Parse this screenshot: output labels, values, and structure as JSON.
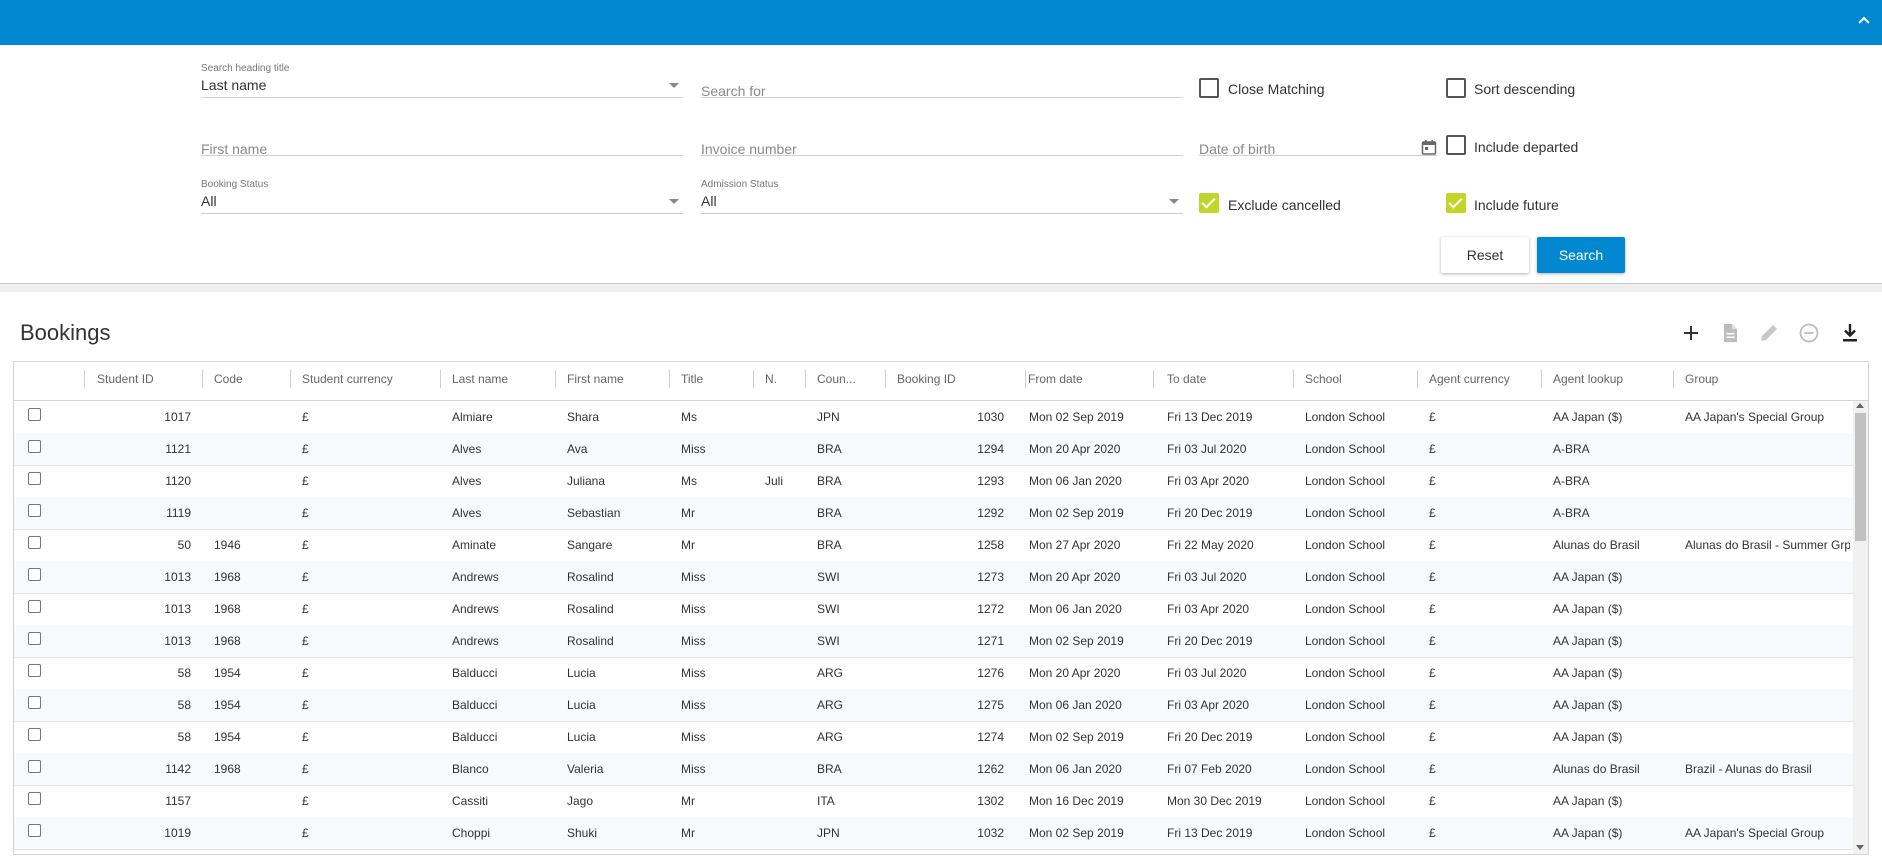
{
  "search": {
    "heading_label": "Search heading title",
    "heading_value": "Last name",
    "search_for_placeholder": "Search for",
    "first_name_placeholder": "First name",
    "invoice_placeholder": "Invoice number",
    "dob_placeholder": "Date of birth",
    "booking_status_label": "Booking Status",
    "booking_status_value": "All",
    "admission_status_label": "Admission Status",
    "admission_status_value": "All",
    "close_matching": {
      "label": "Close Matching",
      "checked": false
    },
    "sort_descending": {
      "label": "Sort descending",
      "checked": false
    },
    "include_departed": {
      "label": "Include departed",
      "checked": false
    },
    "exclude_cancelled": {
      "label": "Exclude cancelled",
      "checked": true
    },
    "include_future": {
      "label": "Include future",
      "checked": true
    },
    "reset_label": "Reset",
    "search_label": "Search"
  },
  "bookings": {
    "title": "Bookings",
    "toolbar_icons": [
      "add-icon",
      "document-icon",
      "edit-icon",
      "remove-icon",
      "download-icon"
    ],
    "columns": [
      "Student ID",
      "Code",
      "Student currency",
      "Last name",
      "First name",
      "Title",
      "N.",
      "Coun...",
      "Booking ID",
      "From date",
      "To date",
      "School",
      "Agent currency",
      "Agent lookup",
      "Group"
    ],
    "rows": [
      [
        "1017",
        "",
        "£",
        "Almiare",
        "Shara",
        "Ms",
        "",
        "JPN",
        "1030",
        "Mon 02 Sep 2019",
        "Fri 13 Dec 2019",
        "London School",
        "£",
        "AA Japan ($)",
        "AA Japan's Special Group"
      ],
      [
        "1121",
        "",
        "£",
        "Alves",
        "Ava",
        "Miss",
        "",
        "BRA",
        "1294",
        "Mon 20 Apr 2020",
        "Fri 03 Jul 2020",
        "London School",
        "£",
        "A-BRA",
        ""
      ],
      [
        "1120",
        "",
        "£",
        "Alves",
        "Juliana",
        "Ms",
        "Juli",
        "BRA",
        "1293",
        "Mon 06 Jan 2020",
        "Fri 03 Apr 2020",
        "London School",
        "£",
        "A-BRA",
        ""
      ],
      [
        "1119",
        "",
        "£",
        "Alves",
        "Sebastian",
        "Mr",
        "",
        "BRA",
        "1292",
        "Mon 02 Sep 2019",
        "Fri 20 Dec 2019",
        "London School",
        "£",
        "A-BRA",
        ""
      ],
      [
        "50",
        "1946",
        "£",
        "Aminate",
        "Sangare",
        "Mr",
        "",
        "BRA",
        "1258",
        "Mon 27 Apr 2020",
        "Fri 22 May 2020",
        "London School",
        "£",
        "Alunas do Brasil",
        "Alunas do Brasil - Summer Grp"
      ],
      [
        "1013",
        "1968",
        "£",
        "Andrews",
        "Rosalind",
        "Miss",
        "",
        "SWI",
        "1273",
        "Mon 20 Apr 2020",
        "Fri 03 Jul 2020",
        "London School",
        "£",
        "AA Japan ($)",
        ""
      ],
      [
        "1013",
        "1968",
        "£",
        "Andrews",
        "Rosalind",
        "Miss",
        "",
        "SWI",
        "1272",
        "Mon 06 Jan 2020",
        "Fri 03 Apr 2020",
        "London School",
        "£",
        "AA Japan ($)",
        ""
      ],
      [
        "1013",
        "1968",
        "£",
        "Andrews",
        "Rosalind",
        "Miss",
        "",
        "SWI",
        "1271",
        "Mon 02 Sep 2019",
        "Fri 20 Dec 2019",
        "London School",
        "£",
        "AA Japan ($)",
        ""
      ],
      [
        "58",
        "1954",
        "£",
        "Balducci",
        "Lucia",
        "Miss",
        "",
        "ARG",
        "1276",
        "Mon 20 Apr 2020",
        "Fri 03 Jul 2020",
        "London School",
        "£",
        "AA Japan ($)",
        ""
      ],
      [
        "58",
        "1954",
        "£",
        "Balducci",
        "Lucia",
        "Miss",
        "",
        "ARG",
        "1275",
        "Mon 06 Jan 2020",
        "Fri 03 Apr 2020",
        "London School",
        "£",
        "AA Japan ($)",
        ""
      ],
      [
        "58",
        "1954",
        "£",
        "Balducci",
        "Lucia",
        "Miss",
        "",
        "ARG",
        "1274",
        "Mon 02 Sep 2019",
        "Fri 20 Dec 2019",
        "London School",
        "£",
        "AA Japan ($)",
        ""
      ],
      [
        "1142",
        "1968",
        "£",
        "Blanco",
        "Valeria",
        "Miss",
        "",
        "BRA",
        "1262",
        "Mon 06 Jan 2020",
        "Fri 07 Feb 2020",
        "London School",
        "£",
        "Alunas do Brasil",
        "Brazil - Alunas do Brasil"
      ],
      [
        "1157",
        "",
        "£",
        "Cassiti",
        "Jago",
        "Mr",
        "",
        "ITA",
        "1302",
        "Mon 16 Dec 2019",
        "Mon 30 Dec 2019",
        "London School",
        "£",
        "AA Japan ($)",
        ""
      ],
      [
        "1019",
        "",
        "£",
        "Choppi",
        "Shuki",
        "Mr",
        "",
        "JPN",
        "1032",
        "Mon 02 Sep 2019",
        "Fri 13 Dec 2019",
        "London School",
        "£",
        "AA Japan ($)",
        "AA Japan's Special Group"
      ]
    ]
  },
  "colors": {
    "accent": "#0288d1",
    "check": "#c0d62a"
  }
}
